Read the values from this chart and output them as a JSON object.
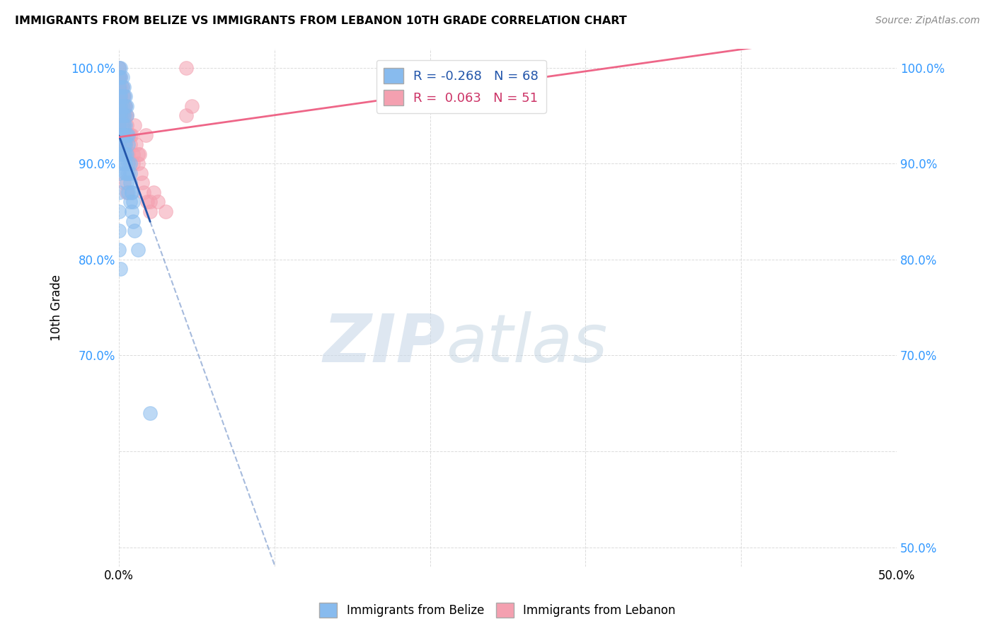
{
  "title": "IMMIGRANTS FROM BELIZE VS IMMIGRANTS FROM LEBANON 10TH GRADE CORRELATION CHART",
  "source": "Source: ZipAtlas.com",
  "ylabel": "10th Grade",
  "belize_R": -0.268,
  "belize_N": 68,
  "lebanon_R": 0.063,
  "lebanon_N": 51,
  "watermark_zip": "ZIP",
  "watermark_atlas": "atlas",
  "belize_color": "#88BBEE",
  "lebanon_color": "#F4A0B0",
  "belize_line_color": "#2255AA",
  "lebanon_line_color": "#EE6688",
  "belize_scatter_x": [
    0.001,
    0.001,
    0.002,
    0.002,
    0.003,
    0.003,
    0.004,
    0.004,
    0.005,
    0.005,
    0.001,
    0.001,
    0.002,
    0.002,
    0.003,
    0.003,
    0.004,
    0.005,
    0.006,
    0.006,
    0.001,
    0.002,
    0.002,
    0.003,
    0.004,
    0.004,
    0.005,
    0.006,
    0.007,
    0.007,
    0.002,
    0.003,
    0.003,
    0.004,
    0.005,
    0.006,
    0.007,
    0.008,
    0.008,
    0.009,
    0.002,
    0.003,
    0.004,
    0.005,
    0.006,
    0.007,
    0.008,
    0.009,
    0.01,
    0.012,
    0.0,
    0.0,
    0.0,
    0.0,
    0.0,
    0.0,
    0.0,
    0.0,
    0.0,
    0.0,
    0.0,
    0.0,
    0.0,
    0.0,
    0.0,
    0.0,
    0.001,
    0.02
  ],
  "belize_scatter_y": [
    1.0,
    0.99,
    0.99,
    0.98,
    0.98,
    0.97,
    0.97,
    0.96,
    0.96,
    0.95,
    0.97,
    0.96,
    0.96,
    0.95,
    0.95,
    0.94,
    0.94,
    0.93,
    0.93,
    0.92,
    0.95,
    0.94,
    0.93,
    0.93,
    0.92,
    0.91,
    0.91,
    0.9,
    0.9,
    0.89,
    0.93,
    0.92,
    0.91,
    0.9,
    0.89,
    0.89,
    0.88,
    0.87,
    0.87,
    0.86,
    0.91,
    0.9,
    0.89,
    0.88,
    0.87,
    0.86,
    0.85,
    0.84,
    0.83,
    0.81,
    1.0,
    0.99,
    0.98,
    0.97,
    0.96,
    0.95,
    0.94,
    0.93,
    0.92,
    0.91,
    0.9,
    0.89,
    0.87,
    0.85,
    0.83,
    0.81,
    0.79,
    0.64
  ],
  "lebanon_scatter_x": [
    0.0,
    0.0,
    0.0,
    0.0,
    0.0,
    0.0,
    0.0,
    0.0,
    0.0,
    0.001,
    0.001,
    0.001,
    0.001,
    0.002,
    0.002,
    0.002,
    0.003,
    0.003,
    0.003,
    0.004,
    0.004,
    0.005,
    0.005,
    0.006,
    0.007,
    0.008,
    0.009,
    0.01,
    0.011,
    0.012,
    0.013,
    0.014,
    0.015,
    0.016,
    0.018,
    0.02,
    0.022,
    0.025,
    0.03,
    0.004,
    0.006,
    0.009,
    0.043,
    0.043,
    0.003,
    0.007,
    0.012,
    0.017,
    0.02,
    0.047,
    0.005
  ],
  "lebanon_scatter_y": [
    1.0,
    0.99,
    0.98,
    0.97,
    0.96,
    0.95,
    0.94,
    0.93,
    0.92,
    0.99,
    0.98,
    0.97,
    0.96,
    0.98,
    0.97,
    0.95,
    0.97,
    0.96,
    0.94,
    0.96,
    0.95,
    0.95,
    0.94,
    0.93,
    0.92,
    0.93,
    0.91,
    0.94,
    0.92,
    0.9,
    0.91,
    0.89,
    0.88,
    0.87,
    0.86,
    0.85,
    0.87,
    0.86,
    0.85,
    0.92,
    0.91,
    0.9,
    1.0,
    0.95,
    0.88,
    0.93,
    0.91,
    0.93,
    0.86,
    0.96,
    0.87
  ],
  "xlim": [
    0.0,
    0.5
  ],
  "ylim": [
    0.48,
    1.02
  ],
  "x_ticks": [
    0.0,
    0.1,
    0.2,
    0.3,
    0.4,
    0.5
  ],
  "x_tick_labels": [
    "0.0%",
    "",
    "",
    "",
    "",
    "50.0%"
  ],
  "y_ticks": [
    0.5,
    0.6,
    0.7,
    0.8,
    0.9,
    1.0
  ],
  "y_tick_labels_left": [
    "",
    "",
    "70.0%",
    "80.0%",
    "90.0%",
    "100.0%"
  ],
  "y_tick_labels_right": [
    "50.0%",
    "",
    "70.0%",
    "80.0%",
    "90.0%",
    "100.0%"
  ],
  "background_color": "#FFFFFF",
  "grid_color": "#CCCCCC"
}
